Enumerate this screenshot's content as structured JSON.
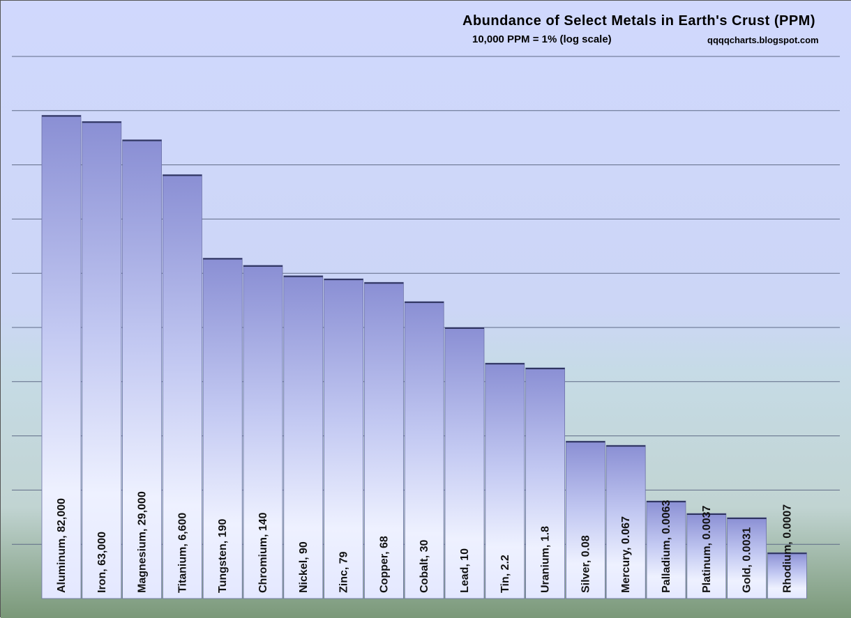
{
  "chart_data": {
    "type": "bar",
    "title": "Abundance of Select Metals in Earth's Crust (PPM)",
    "subtitle": "10,000 PPM = 1%  (log scale)",
    "source": "qqqqcharts.blogspot.com",
    "y_scale": "log",
    "ylim": [
      0.0001,
      1000000
    ],
    "grid": true,
    "categories": [
      "Aluminum",
      "Iron",
      "Magnesium",
      "Titanium",
      "Tungsten",
      "Chromium",
      "Nickel",
      "Zinc",
      "Copper",
      "Cobalt",
      "Lead",
      "Tin",
      "Uranium",
      "Silver",
      "Mercury",
      "Palladium",
      "Platinum",
      "Gold",
      "Rhodium"
    ],
    "values": [
      82000,
      63000,
      29000,
      6600,
      190,
      140,
      90,
      79,
      68,
      30,
      10,
      2.2,
      1.8,
      0.08,
      0.067,
      0.0063,
      0.0037,
      0.0031,
      0.0007
    ],
    "bar_labels": [
      "Aluminum, 82,000",
      "Iron, 63,000",
      "Magnesium, 29,000",
      "Titanium, 6,600",
      "Tungsten, 190",
      "Chromium, 140",
      "Nickel, 90",
      "Zinc, 79",
      "Copper, 68",
      "Cobalt, 30",
      "Lead, 10",
      "Tin, 2.2",
      "Uranium, 1.8",
      "Silver, 0.08",
      "Mercury, 0.067",
      "Palladium, 0.0063",
      "Platinum, 0.0037",
      "Gold, 0.0031",
      "Rhodium, 0.0007"
    ],
    "colors": {
      "bar_top": "#8a8fd2",
      "bar_bottom": "#eef1ff",
      "background_top": "#cdd6fb",
      "background_bottom": "#7a9676"
    }
  }
}
